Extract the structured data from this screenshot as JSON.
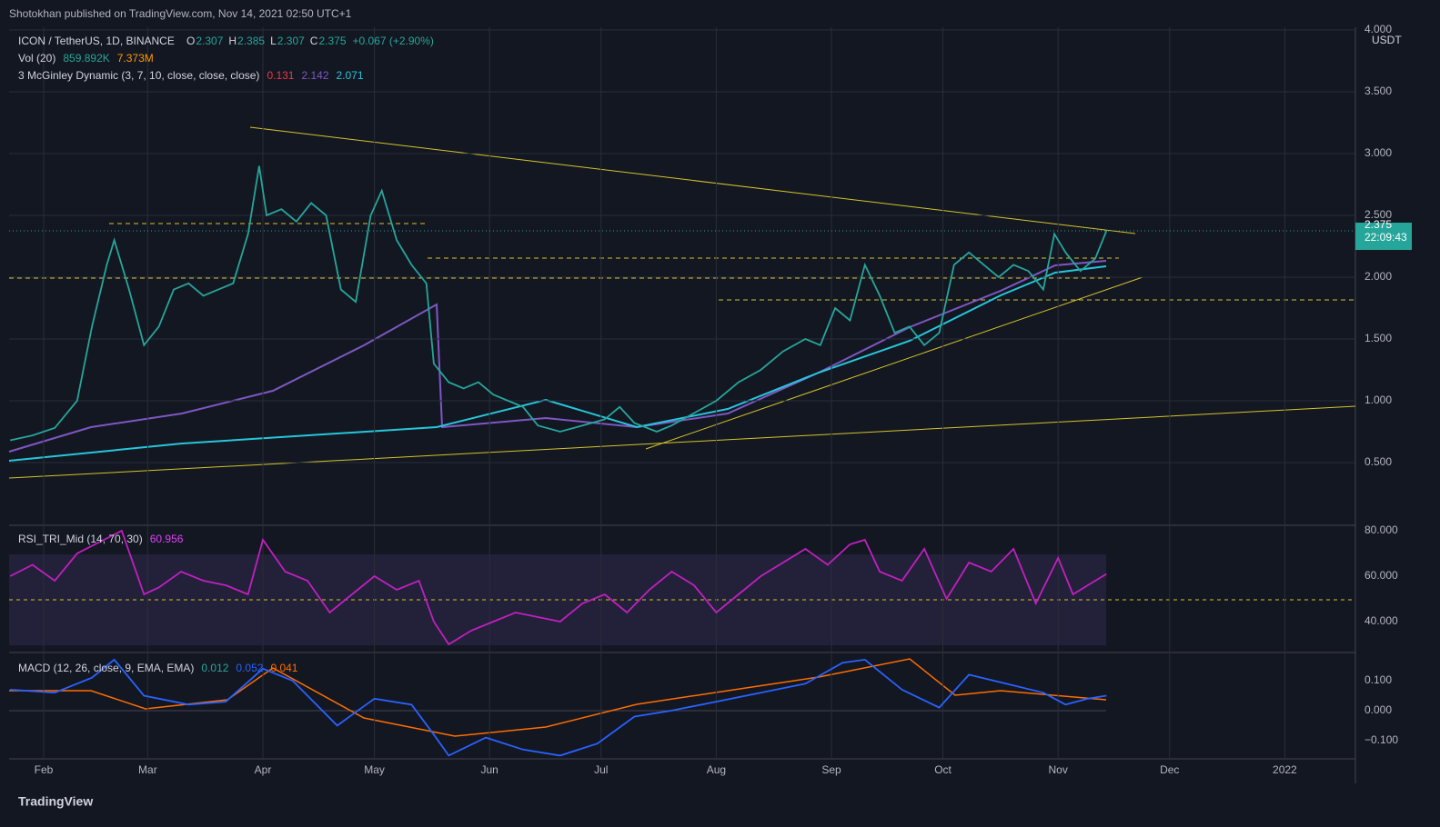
{
  "header": {
    "published": "Shotokhan published on TradingView.com, Nov 14, 2021 02:50 UTC+1",
    "footer": "TradingView"
  },
  "chart_data": [
    {
      "type": "line",
      "title": "ICON / TetherUS, 1D, BINANCE",
      "quote": [
        {
          "k": "O",
          "v": "2.307"
        },
        {
          "k": "H",
          "v": "2.385"
        },
        {
          "k": "L",
          "v": "2.307"
        },
        {
          "k": "C",
          "v": "2.375"
        },
        {
          "k": "",
          "v": "+0.067 (+2.90%)"
        }
      ],
      "volume": {
        "label": "Vol (20)",
        "values": [
          "859.892K",
          "7.373M"
        ]
      },
      "mcginley": {
        "label": "3 McGinley Dynamic (3, 7, 10, close, close, close)",
        "values": [
          "0.131",
          "2.142",
          "2.071"
        ]
      },
      "unit": "USDT",
      "last": {
        "value": 2.375,
        "label": "2.375",
        "countdown": "22:09:43"
      },
      "x": [
        22,
        28,
        34,
        40,
        44,
        48,
        50,
        54,
        58,
        62,
        66,
        70,
        74,
        78,
        82,
        86,
        89,
        91,
        95,
        99,
        103,
        107,
        111,
        115,
        119,
        122,
        126,
        130,
        134,
        136,
        140,
        144,
        148,
        152,
        156,
        160,
        164,
        170,
        176,
        182,
        186,
        190,
        196,
        200,
        206,
        212,
        218,
        224,
        230,
        236,
        240,
        244,
        248,
        252,
        256,
        260,
        264,
        268,
        272,
        276,
        280,
        284,
        288,
        292,
        296,
        300,
        303,
        306,
        310,
        314,
        317
      ],
      "series": [
        {
          "color": "#26a69a",
          "values": [
            0.68,
            0.72,
            0.78,
            1.0,
            1.6,
            2.1,
            2.3,
            1.9,
            1.45,
            1.6,
            1.9,
            1.95,
            1.85,
            1.9,
            1.95,
            2.35,
            2.9,
            2.5,
            2.55,
            2.45,
            2.6,
            2.5,
            1.9,
            1.8,
            2.5,
            2.7,
            2.3,
            2.1,
            1.95,
            1.3,
            1.15,
            1.1,
            1.15,
            1.05,
            1.0,
            0.95,
            0.8,
            0.75,
            0.8,
            0.85,
            0.95,
            0.82,
            0.75,
            0.8,
            0.9,
            1.0,
            1.15,
            1.25,
            1.4,
            1.5,
            1.45,
            1.75,
            1.65,
            2.1,
            1.85,
            1.55,
            1.6,
            1.45,
            1.55,
            2.1,
            2.2,
            2.1,
            2.0,
            2.1,
            2.05,
            1.9,
            2.35,
            2.2,
            2.05,
            2.15,
            2.375
          ]
        }
      ],
      "xlim": [
        21.7,
        384
      ],
      "xticks": [
        {
          "value": 31,
          "label": "Feb"
        },
        {
          "value": 59,
          "label": "Mar"
        },
        {
          "value": 90,
          "label": "Apr"
        },
        {
          "value": 120,
          "label": "May"
        },
        {
          "value": 151,
          "label": "Jun"
        },
        {
          "value": 181,
          "label": "Jul"
        },
        {
          "value": 212,
          "label": "Aug"
        },
        {
          "value": 243,
          "label": "Sep"
        },
        {
          "value": 273,
          "label": "Oct"
        },
        {
          "value": 304,
          "label": "Nov"
        },
        {
          "value": 334,
          "label": "Dec"
        },
        {
          "value": 365,
          "label": "2022"
        }
      ],
      "ylim": [
        0,
        4
      ],
      "yticks": [
        {
          "value": 4,
          "label": "4.000"
        },
        {
          "value": 3.5,
          "label": "3.500"
        },
        {
          "value": 3,
          "label": "3.000"
        },
        {
          "value": 2.5,
          "label": "2.500"
        },
        {
          "value": 2,
          "label": "2.000"
        },
        {
          "value": 1.5,
          "label": "1.500"
        },
        {
          "value": 1,
          "label": "1.000"
        },
        {
          "value": 0.5,
          "label": "0.500"
        }
      ],
      "grid": true
    },
    {
      "type": "line",
      "title": "RSI_TRI_Mid (14, 70, 30)",
      "value_label": "60.956",
      "x": [
        22,
        28,
        34,
        40,
        46,
        52,
        58,
        62,
        68,
        74,
        80,
        86,
        90,
        96,
        102,
        108,
        114,
        120,
        126,
        132,
        136,
        140,
        146,
        152,
        158,
        164,
        170,
        176,
        182,
        188,
        194,
        200,
        206,
        212,
        218,
        224,
        230,
        236,
        242,
        248,
        252,
        256,
        262,
        268,
        274,
        280,
        286,
        292,
        298,
        304,
        308,
        312,
        317
      ],
      "series": [
        {
          "color": "#c020c0",
          "values": [
            60,
            65,
            58,
            70,
            75,
            80,
            52,
            55,
            62,
            58,
            56,
            52,
            76,
            62,
            58,
            44,
            52,
            60,
            54,
            58,
            40,
            30,
            36,
            40,
            44,
            42,
            40,
            48,
            52,
            44,
            54,
            62,
            56,
            44,
            52,
            60,
            66,
            72,
            65,
            74,
            76,
            62,
            58,
            72,
            50,
            66,
            62,
            72,
            48,
            68,
            52,
            56,
            60.956
          ]
        }
      ],
      "xlim": [
        21.7,
        384
      ],
      "ylim": [
        26.4,
        82.4
      ],
      "yticks": [
        {
          "value": 80,
          "label": "80.000"
        },
        {
          "value": 60,
          "label": "60.000"
        },
        {
          "value": 40,
          "label": "40.000"
        }
      ]
    },
    {
      "type": "line",
      "title": "MACD (12, 26, close, 9, EMA, EMA)",
      "legend": [
        "0.012",
        "0.052",
        "0.041"
      ],
      "x": [
        22,
        34,
        44,
        50,
        58,
        70,
        80,
        90,
        98,
        110,
        120,
        130,
        136,
        140,
        150,
        160,
        170,
        180,
        190,
        200,
        212,
        224,
        236,
        246,
        252,
        262,
        272,
        280,
        290,
        300,
        306,
        312,
        317
      ],
      "series": [
        {
          "color": "#2962ff",
          "values": [
            0.07,
            0.06,
            0.11,
            0.17,
            0.05,
            0.02,
            0.03,
            0.14,
            0.1,
            -0.05,
            0.04,
            0.02,
            -0.08,
            -0.15,
            -0.09,
            -0.13,
            -0.15,
            -0.11,
            -0.02,
            0.0,
            0.03,
            0.06,
            0.09,
            0.16,
            0.17,
            0.07,
            0.01,
            0.12,
            0.09,
            0.06,
            0.02,
            0.04,
            0.05
          ]
        }
      ],
      "xlim": [
        21.7,
        384
      ],
      "ylim": [
        -0.161,
        0.194
      ],
      "yticks": [
        {
          "value": 0.1,
          "label": "0.100"
        },
        {
          "value": 0,
          "label": "0.000"
        },
        {
          "value": -0.1,
          "label": "−0.100"
        }
      ]
    }
  ]
}
